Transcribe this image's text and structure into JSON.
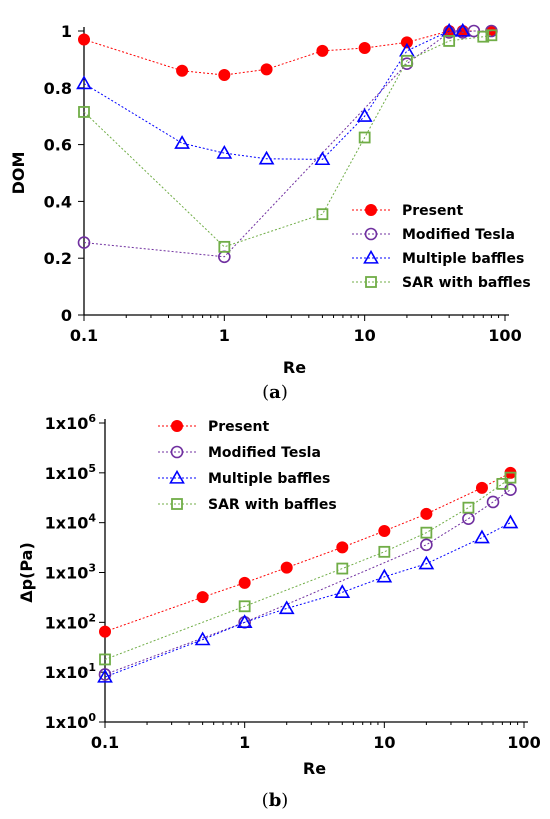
{
  "chart_data": [
    {
      "type": "scatter",
      "caption": "(a)",
      "caption_letter": "a",
      "title": "",
      "xlabel": "Re",
      "ylabel": "DOM",
      "xscale": "log",
      "xlim": [
        0.1,
        100
      ],
      "ylim": [
        0,
        1
      ],
      "xticks": [
        {
          "v": 0.1,
          "label": "0.1"
        },
        {
          "v": 1,
          "label": "1"
        },
        {
          "v": 10,
          "label": "10"
        },
        {
          "v": 100,
          "label": "100"
        }
      ],
      "yticks": [
        {
          "v": 0,
          "label": "0"
        },
        {
          "v": 0.2,
          "label": "0.2"
        },
        {
          "v": 0.4,
          "label": "0.4"
        },
        {
          "v": 0.6,
          "label": "0.6"
        },
        {
          "v": 0.8,
          "label": "0.8"
        },
        {
          "v": 1,
          "label": "1"
        }
      ],
      "grid": false,
      "legend_position": "bottom-right",
      "series": [
        {
          "name": "Present",
          "marker": "filled-circle",
          "color": "#ff0000",
          "x": [
            0.1,
            0.5,
            1,
            2,
            5,
            10,
            20,
            40,
            50,
            80
          ],
          "y": [
            0.97,
            0.86,
            0.845,
            0.865,
            0.93,
            0.94,
            0.96,
            1.0,
            1.0,
            1.0
          ]
        },
        {
          "name": "Modified Tesla",
          "marker": "open-circle",
          "color": "#7030a0",
          "x": [
            0.1,
            1,
            20,
            40,
            50,
            60,
            80
          ],
          "y": [
            0.255,
            0.205,
            0.885,
            0.995,
            0.995,
            1.0,
            1.0
          ]
        },
        {
          "name": "Multiple baffles",
          "marker": "open-triangle",
          "color": "#0000ff",
          "x": [
            0.1,
            0.5,
            1,
            2,
            5,
            10,
            20,
            40,
            50
          ],
          "y": [
            0.815,
            0.605,
            0.57,
            0.55,
            0.548,
            0.7,
            0.93,
            1.0,
            1.0
          ]
        },
        {
          "name": "SAR with baffles",
          "marker": "open-square",
          "color": "#70ad47",
          "x": [
            0.1,
            1,
            5,
            10,
            20,
            40,
            70,
            80
          ],
          "y": [
            0.715,
            0.24,
            0.355,
            0.625,
            0.895,
            0.965,
            0.98,
            0.985
          ]
        }
      ]
    },
    {
      "type": "scatter",
      "caption": "(b)",
      "caption_letter": "b",
      "title": "",
      "xlabel": "Re",
      "ylabel": "Δp(Pa)",
      "xscale": "log",
      "yscale": "log",
      "xlim": [
        0.1,
        100
      ],
      "ylim": [
        1,
        1000000
      ],
      "xticks": [
        {
          "v": 0.1,
          "label": "0.1"
        },
        {
          "v": 1,
          "label": "1"
        },
        {
          "v": 10,
          "label": "10"
        },
        {
          "v": 100,
          "label": "100"
        }
      ],
      "yticks": [
        {
          "v": 1,
          "base": "1x10",
          "exp": "0"
        },
        {
          "v": 10,
          "base": "1x10",
          "exp": "1"
        },
        {
          "v": 100,
          "base": "1x10",
          "exp": "2"
        },
        {
          "v": 1000,
          "base": "1x10",
          "exp": "3"
        },
        {
          "v": 10000,
          "base": "1x10",
          "exp": "4"
        },
        {
          "v": 100000,
          "base": "1x10",
          "exp": "5"
        },
        {
          "v": 1000000,
          "base": "1x10",
          "exp": "6"
        }
      ],
      "grid": false,
      "legend_position": "top-left",
      "series": [
        {
          "name": "Present",
          "marker": "filled-circle",
          "color": "#ff0000",
          "x": [
            0.1,
            0.5,
            1,
            2,
            5,
            10,
            20,
            50,
            80
          ],
          "y": [
            65,
            320,
            620,
            1250,
            3200,
            6800,
            15000,
            50000,
            100000
          ]
        },
        {
          "name": "Modified Tesla",
          "marker": "open-circle",
          "color": "#7030a0",
          "x": [
            0.1,
            1,
            20,
            40,
            60,
            80
          ],
          "y": [
            9,
            100,
            3600,
            12000,
            26000,
            46000
          ]
        },
        {
          "name": "Multiple baffles",
          "marker": "open-triangle",
          "color": "#0000ff",
          "x": [
            0.1,
            0.5,
            1,
            2,
            5,
            10,
            20,
            50,
            80
          ],
          "y": [
            8,
            45,
            100,
            190,
            400,
            820,
            1500,
            5000,
            10000
          ]
        },
        {
          "name": "SAR with baffles",
          "marker": "open-square",
          "color": "#70ad47",
          "x": [
            0.1,
            1,
            5,
            10,
            20,
            40,
            70,
            80
          ],
          "y": [
            18,
            210,
            1200,
            2600,
            6300,
            20000,
            60000,
            80000
          ]
        }
      ]
    }
  ]
}
